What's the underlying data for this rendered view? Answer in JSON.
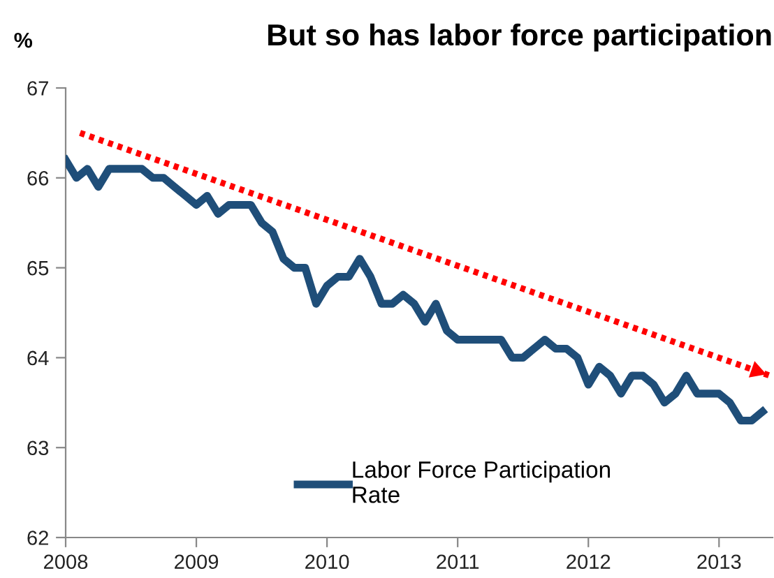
{
  "chart_data": {
    "type": "line",
    "title": "But so has labor force participation",
    "ylabel": "%",
    "xlim": [
      2008,
      2013.41
    ],
    "xticks": [
      2008,
      2009,
      2010,
      2011,
      2012,
      2013
    ],
    "ylim": [
      62,
      67
    ],
    "yticks": [
      62,
      63,
      64,
      65,
      66,
      67
    ],
    "grid": false,
    "legend": "bottom",
    "marker": "none",
    "series": [
      {
        "name": "Labor Force Participation Rate",
        "color": "#1f4e79",
        "line_style": "solid",
        "x": [
          2008.0,
          2008.083,
          2008.167,
          2008.25,
          2008.333,
          2008.417,
          2008.5,
          2008.583,
          2008.667,
          2008.75,
          2008.833,
          2008.917,
          2009.0,
          2009.083,
          2009.167,
          2009.25,
          2009.333,
          2009.417,
          2009.5,
          2009.583,
          2009.667,
          2009.75,
          2009.833,
          2009.917,
          2010.0,
          2010.083,
          2010.167,
          2010.25,
          2010.333,
          2010.417,
          2010.5,
          2010.583,
          2010.667,
          2010.75,
          2010.833,
          2010.917,
          2011.0,
          2011.083,
          2011.167,
          2011.25,
          2011.333,
          2011.417,
          2011.5,
          2011.583,
          2011.667,
          2011.75,
          2011.833,
          2011.917,
          2012.0,
          2012.083,
          2012.167,
          2012.25,
          2012.333,
          2012.417,
          2012.5,
          2012.583,
          2012.667,
          2012.75,
          2012.833,
          2012.917,
          2013.0,
          2013.083,
          2013.167,
          2013.25,
          2013.333
        ],
        "values": [
          66.2,
          66.0,
          66.1,
          65.9,
          66.1,
          66.1,
          66.1,
          66.1,
          66.0,
          66.0,
          65.9,
          65.8,
          65.7,
          65.8,
          65.6,
          65.7,
          65.7,
          65.7,
          65.5,
          65.4,
          65.1,
          65.0,
          65.0,
          64.6,
          64.8,
          64.9,
          64.9,
          65.1,
          64.9,
          64.6,
          64.6,
          64.7,
          64.6,
          64.4,
          64.6,
          64.3,
          64.2,
          64.2,
          64.2,
          64.2,
          64.2,
          64.0,
          64.0,
          64.1,
          64.2,
          64.1,
          64.1,
          64.0,
          63.7,
          63.9,
          63.8,
          63.6,
          63.8,
          63.8,
          63.7,
          63.5,
          63.6,
          63.8,
          63.6,
          63.6,
          63.6,
          63.5,
          63.3,
          63.3,
          63.4
        ]
      },
      {
        "type": "line",
        "color": "#ff0000",
        "line_style": "dotted",
        "x": [
          2008.11,
          2013.39
        ],
        "values": [
          66.5,
          63.8
        ]
      }
    ]
  }
}
